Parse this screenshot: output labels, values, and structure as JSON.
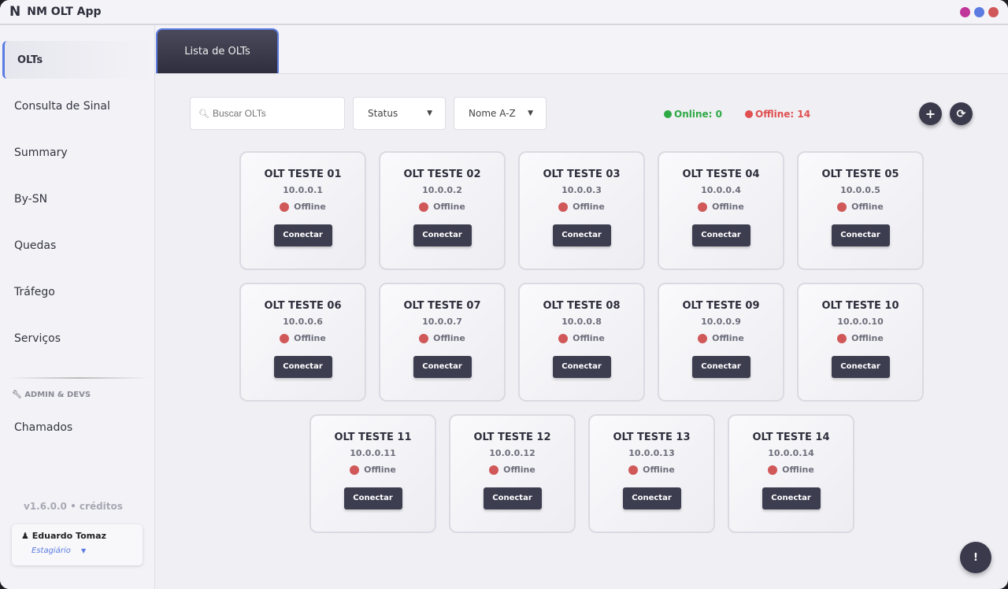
{
  "app": {
    "logo": "N",
    "title": "NM OLT App",
    "window_dots": [
      "#c0359a",
      "#5b7be0",
      "#d05858"
    ]
  },
  "sidebar": {
    "items": [
      {
        "label": "OLTs",
        "active": true
      },
      {
        "label": "Consulta de Sinal"
      },
      {
        "label": "Summary"
      },
      {
        "label": "By-SN"
      },
      {
        "label": "Quedas"
      },
      {
        "label": "Tráfego"
      },
      {
        "label": "Serviços"
      }
    ],
    "admin_label": "ADMIN & DEVS",
    "admin_items": [
      {
        "label": "Chamados"
      }
    ],
    "version": "v1.6.0.0 • créditos",
    "user": {
      "name": "Eduardo Tomaz",
      "role": "Estagiário"
    }
  },
  "tabs": [
    {
      "label": "Lista de OLTs"
    }
  ],
  "toolbar": {
    "search_placeholder": "Buscar OLTs",
    "status_select": "Status",
    "sort_select": "Nome A-Z",
    "online": "Online: 0",
    "offline": "Offline: 14",
    "online_color": "#2eaa44",
    "offline_color": "#e05050"
  },
  "connect_label": "Conectar",
  "help_label": "!",
  "olts": [
    {
      "name": "OLT TESTE 01",
      "ip": "10.0.0.1",
      "status": "Offline"
    },
    {
      "name": "OLT TESTE 02",
      "ip": "10.0.0.2",
      "status": "Offline"
    },
    {
      "name": "OLT TESTE 03",
      "ip": "10.0.0.3",
      "status": "Offline"
    },
    {
      "name": "OLT TESTE 04",
      "ip": "10.0.0.4",
      "status": "Offline"
    },
    {
      "name": "OLT TESTE 05",
      "ip": "10.0.0.5",
      "status": "Offline"
    },
    {
      "name": "OLT TESTE 06",
      "ip": "10.0.0.6",
      "status": "Offline"
    },
    {
      "name": "OLT TESTE 07",
      "ip": "10.0.0.7",
      "status": "Offline"
    },
    {
      "name": "OLT TESTE 08",
      "ip": "10.0.0.8",
      "status": "Offline"
    },
    {
      "name": "OLT TESTE 09",
      "ip": "10.0.0.9",
      "status": "Offline"
    },
    {
      "name": "OLT TESTE 10",
      "ip": "10.0.0.10",
      "status": "Offline"
    },
    {
      "name": "OLT TESTE 11",
      "ip": "10.0.0.11",
      "status": "Offline"
    },
    {
      "name": "OLT TESTE 12",
      "ip": "10.0.0.12",
      "status": "Offline"
    },
    {
      "name": "OLT TESTE 13",
      "ip": "10.0.0.13",
      "status": "Offline"
    },
    {
      "name": "OLT TESTE 14",
      "ip": "10.0.0.14",
      "status": "Offline"
    }
  ]
}
